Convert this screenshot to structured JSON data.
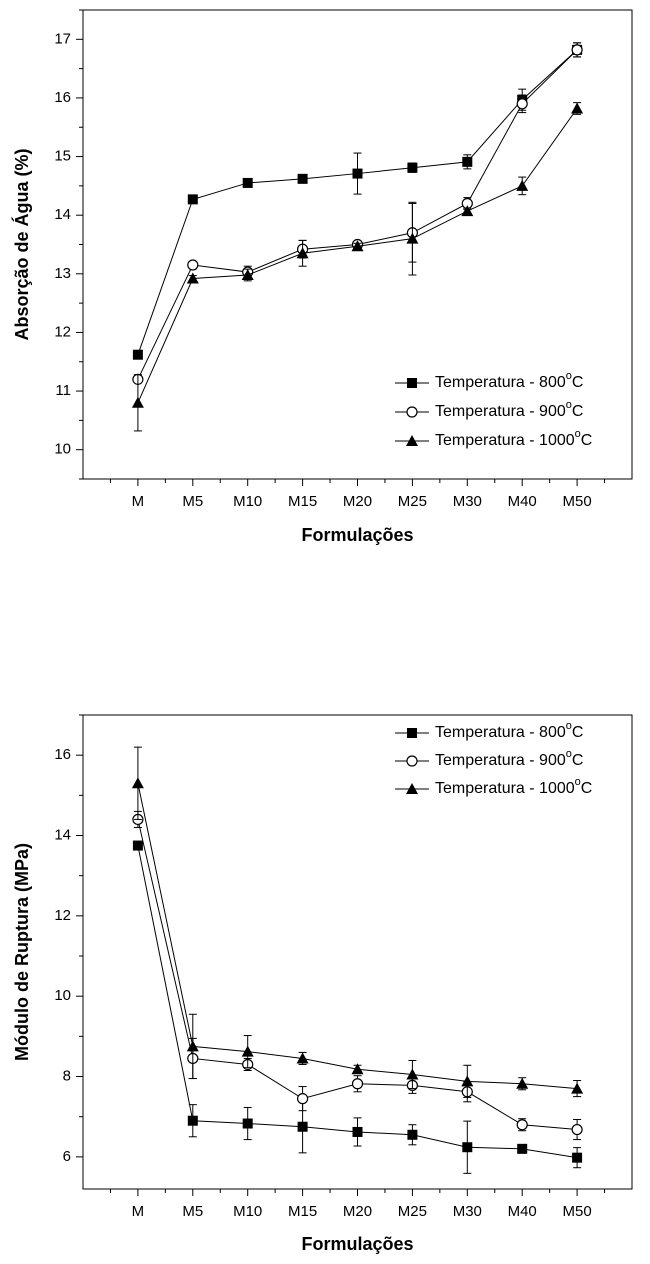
{
  "chart_data": [
    {
      "type": "line",
      "xlabel": "Formulações",
      "ylabel": "Absorção de Água (%)",
      "categories": [
        "M",
        "M5",
        "M10",
        "M15",
        "M20",
        "M25",
        "M30",
        "M40",
        "M50"
      ],
      "ylim": [
        9.5,
        17.5
      ],
      "yticks": [
        "10",
        "11",
        "12",
        "13",
        "14",
        "15",
        "16",
        "17"
      ],
      "legend_position": "bottom-right",
      "series": [
        {
          "name_prefix": "Temperatura - 800",
          "name_sup": "o",
          "name_suffix": "C",
          "marker": "square-filled",
          "values": [
            11.62,
            14.27,
            14.55,
            14.62,
            14.71,
            14.81,
            14.91,
            15.97,
            16.82
          ],
          "errors": [
            0.03,
            0.03,
            0.05,
            0.03,
            0.35,
            0.08,
            0.12,
            0.18,
            0.12
          ]
        },
        {
          "name_prefix": "Temperatura - 900",
          "name_sup": "o",
          "name_suffix": "C",
          "marker": "circle-open",
          "values": [
            11.2,
            13.15,
            13.03,
            13.42,
            13.5,
            13.7,
            14.2,
            15.9,
            16.82
          ],
          "errors": [
            0.03,
            0.03,
            0.1,
            0.15,
            0.05,
            0.5,
            0.1,
            0.15,
            0.12
          ]
        },
        {
          "name_prefix": "Temperatura - 1000",
          "name_sup": "o",
          "name_suffix": "C",
          "marker": "triangle-filled",
          "values": [
            10.8,
            12.92,
            12.98,
            13.35,
            13.47,
            13.6,
            14.07,
            14.5,
            15.82
          ],
          "errors": [
            0.48,
            0.05,
            0.1,
            0.22,
            0.05,
            0.62,
            0.05,
            0.15,
            0.1
          ]
        }
      ]
    },
    {
      "type": "line",
      "xlabel": "Formulações",
      "ylabel": "Módulo de Ruptura (MPa)",
      "categories": [
        "M",
        "M5",
        "M10",
        "M15",
        "M20",
        "M25",
        "M30",
        "M40",
        "M50"
      ],
      "ylim": [
        5.2,
        17.0
      ],
      "yticks": [
        "6",
        "8",
        "10",
        "12",
        "14",
        "16"
      ],
      "legend_position": "top-right",
      "series": [
        {
          "name_prefix": "Temperatura - 800",
          "name_sup": "o",
          "name_suffix": "C",
          "marker": "square-filled",
          "values": [
            13.75,
            6.9,
            6.83,
            6.75,
            6.62,
            6.55,
            6.24,
            6.2,
            5.98
          ],
          "errors": [
            0.1,
            0.4,
            0.4,
            0.65,
            0.35,
            0.25,
            0.65,
            0.1,
            0.25
          ]
        },
        {
          "name_prefix": "Temperatura - 900",
          "name_sup": "o",
          "name_suffix": "C",
          "marker": "circle-open",
          "values": [
            14.4,
            8.45,
            8.3,
            7.45,
            7.82,
            7.78,
            7.62,
            6.8,
            6.68
          ],
          "errors": [
            0.2,
            0.5,
            0.15,
            0.3,
            0.2,
            0.2,
            0.25,
            0.15,
            0.25
          ]
        },
        {
          "name_prefix": "Temperatura - 1000",
          "name_sup": "o",
          "name_suffix": "C",
          "marker": "triangle-filled",
          "values": [
            15.3,
            8.75,
            8.62,
            8.45,
            8.18,
            8.05,
            7.88,
            7.82,
            7.7
          ],
          "errors": [
            0.9,
            0.8,
            0.4,
            0.15,
            0.1,
            0.35,
            0.4,
            0.15,
            0.2
          ]
        }
      ]
    }
  ]
}
